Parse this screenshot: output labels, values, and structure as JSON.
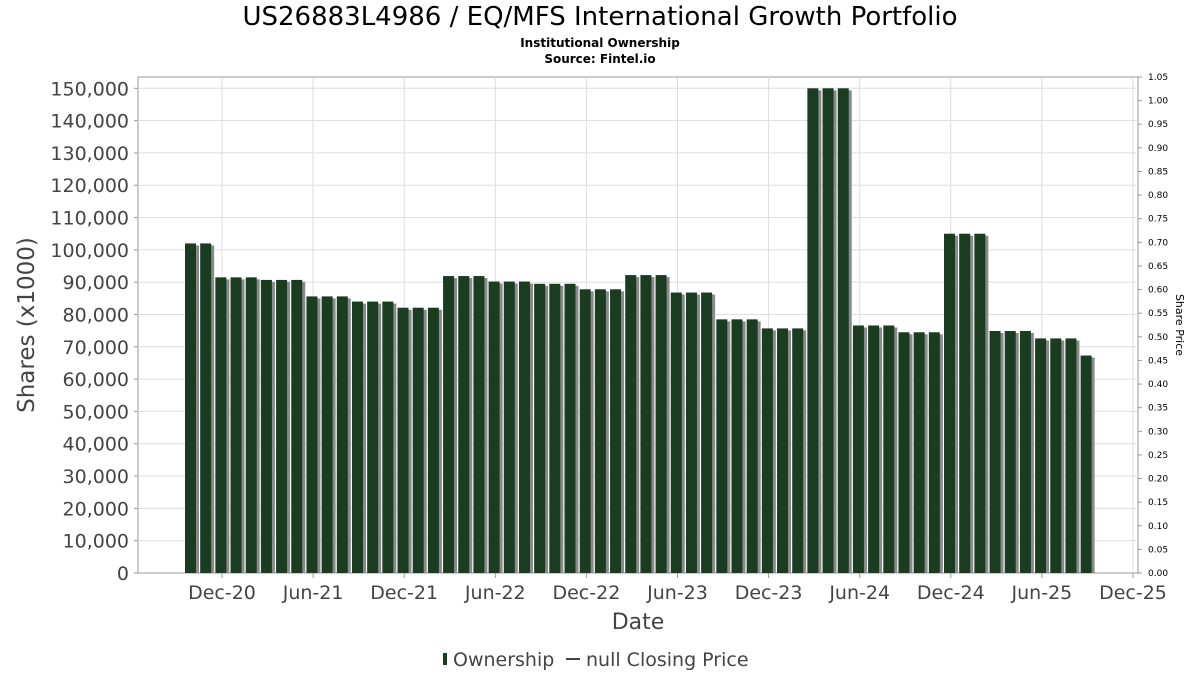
{
  "chart_data": {
    "type": "bar",
    "title": "US26883L4986 / EQ/MFS International Growth Portfolio",
    "subtitle_lines": [
      "Institutional Ownership",
      "Source: Fintel.io"
    ],
    "xlabel": "Date",
    "ylabel": "Shares (x1000)",
    "y2label": "Share Price",
    "ylim": [
      0,
      153500
    ],
    "y2lim": [
      0,
      1.05
    ],
    "y_ticks": [
      "0",
      "10,000",
      "20,000",
      "30,000",
      "40,000",
      "50,000",
      "60,000",
      "70,000",
      "80,000",
      "90,000",
      "100,000",
      "110,000",
      "120,000",
      "130,000",
      "140,000",
      "150,000"
    ],
    "y2_ticks": [
      "0.00",
      "0.05",
      "0.10",
      "0.15",
      "0.20",
      "0.25",
      "0.30",
      "0.35",
      "0.40",
      "0.45",
      "0.50",
      "0.55",
      "0.60",
      "0.65",
      "0.70",
      "0.75",
      "0.80",
      "0.85",
      "0.90",
      "0.95",
      "1.00",
      "1.05"
    ],
    "x_ticks": [
      "Dec-20",
      "Jun-21",
      "Dec-21",
      "Jun-22",
      "Dec-22",
      "Jun-23",
      "Dec-23",
      "Jun-24",
      "Dec-24",
      "Jun-25",
      "Dec-25"
    ],
    "grid": true,
    "legend_position": "bottom",
    "legend": [
      "Ownership",
      "null Closing Price"
    ],
    "series": [
      {
        "name": "Ownership",
        "color": "#1a3d22",
        "values": [
          102000,
          102000,
          91500,
          91500,
          91500,
          90700,
          90700,
          90700,
          85600,
          85600,
          85600,
          84000,
          84000,
          84000,
          82100,
          82100,
          82100,
          91900,
          91900,
          91900,
          90200,
          90200,
          90200,
          89500,
          89500,
          89500,
          87800,
          87800,
          87800,
          92200,
          92200,
          92200,
          86800,
          86800,
          86800,
          78500,
          78500,
          78500,
          75700,
          75700,
          75700,
          150000,
          150000,
          150000,
          76600,
          76600,
          76600,
          74500,
          74500,
          74500,
          105000,
          105000,
          105000,
          74900,
          74900,
          74900,
          72600,
          72600,
          72600,
          67300
        ]
      },
      {
        "name": "null Closing Price",
        "values": []
      }
    ]
  },
  "colors": {
    "bar": "#1a3d22",
    "bar_shadow": "#8a8a8a",
    "grid": "#dddddd",
    "axis": "#999999"
  }
}
